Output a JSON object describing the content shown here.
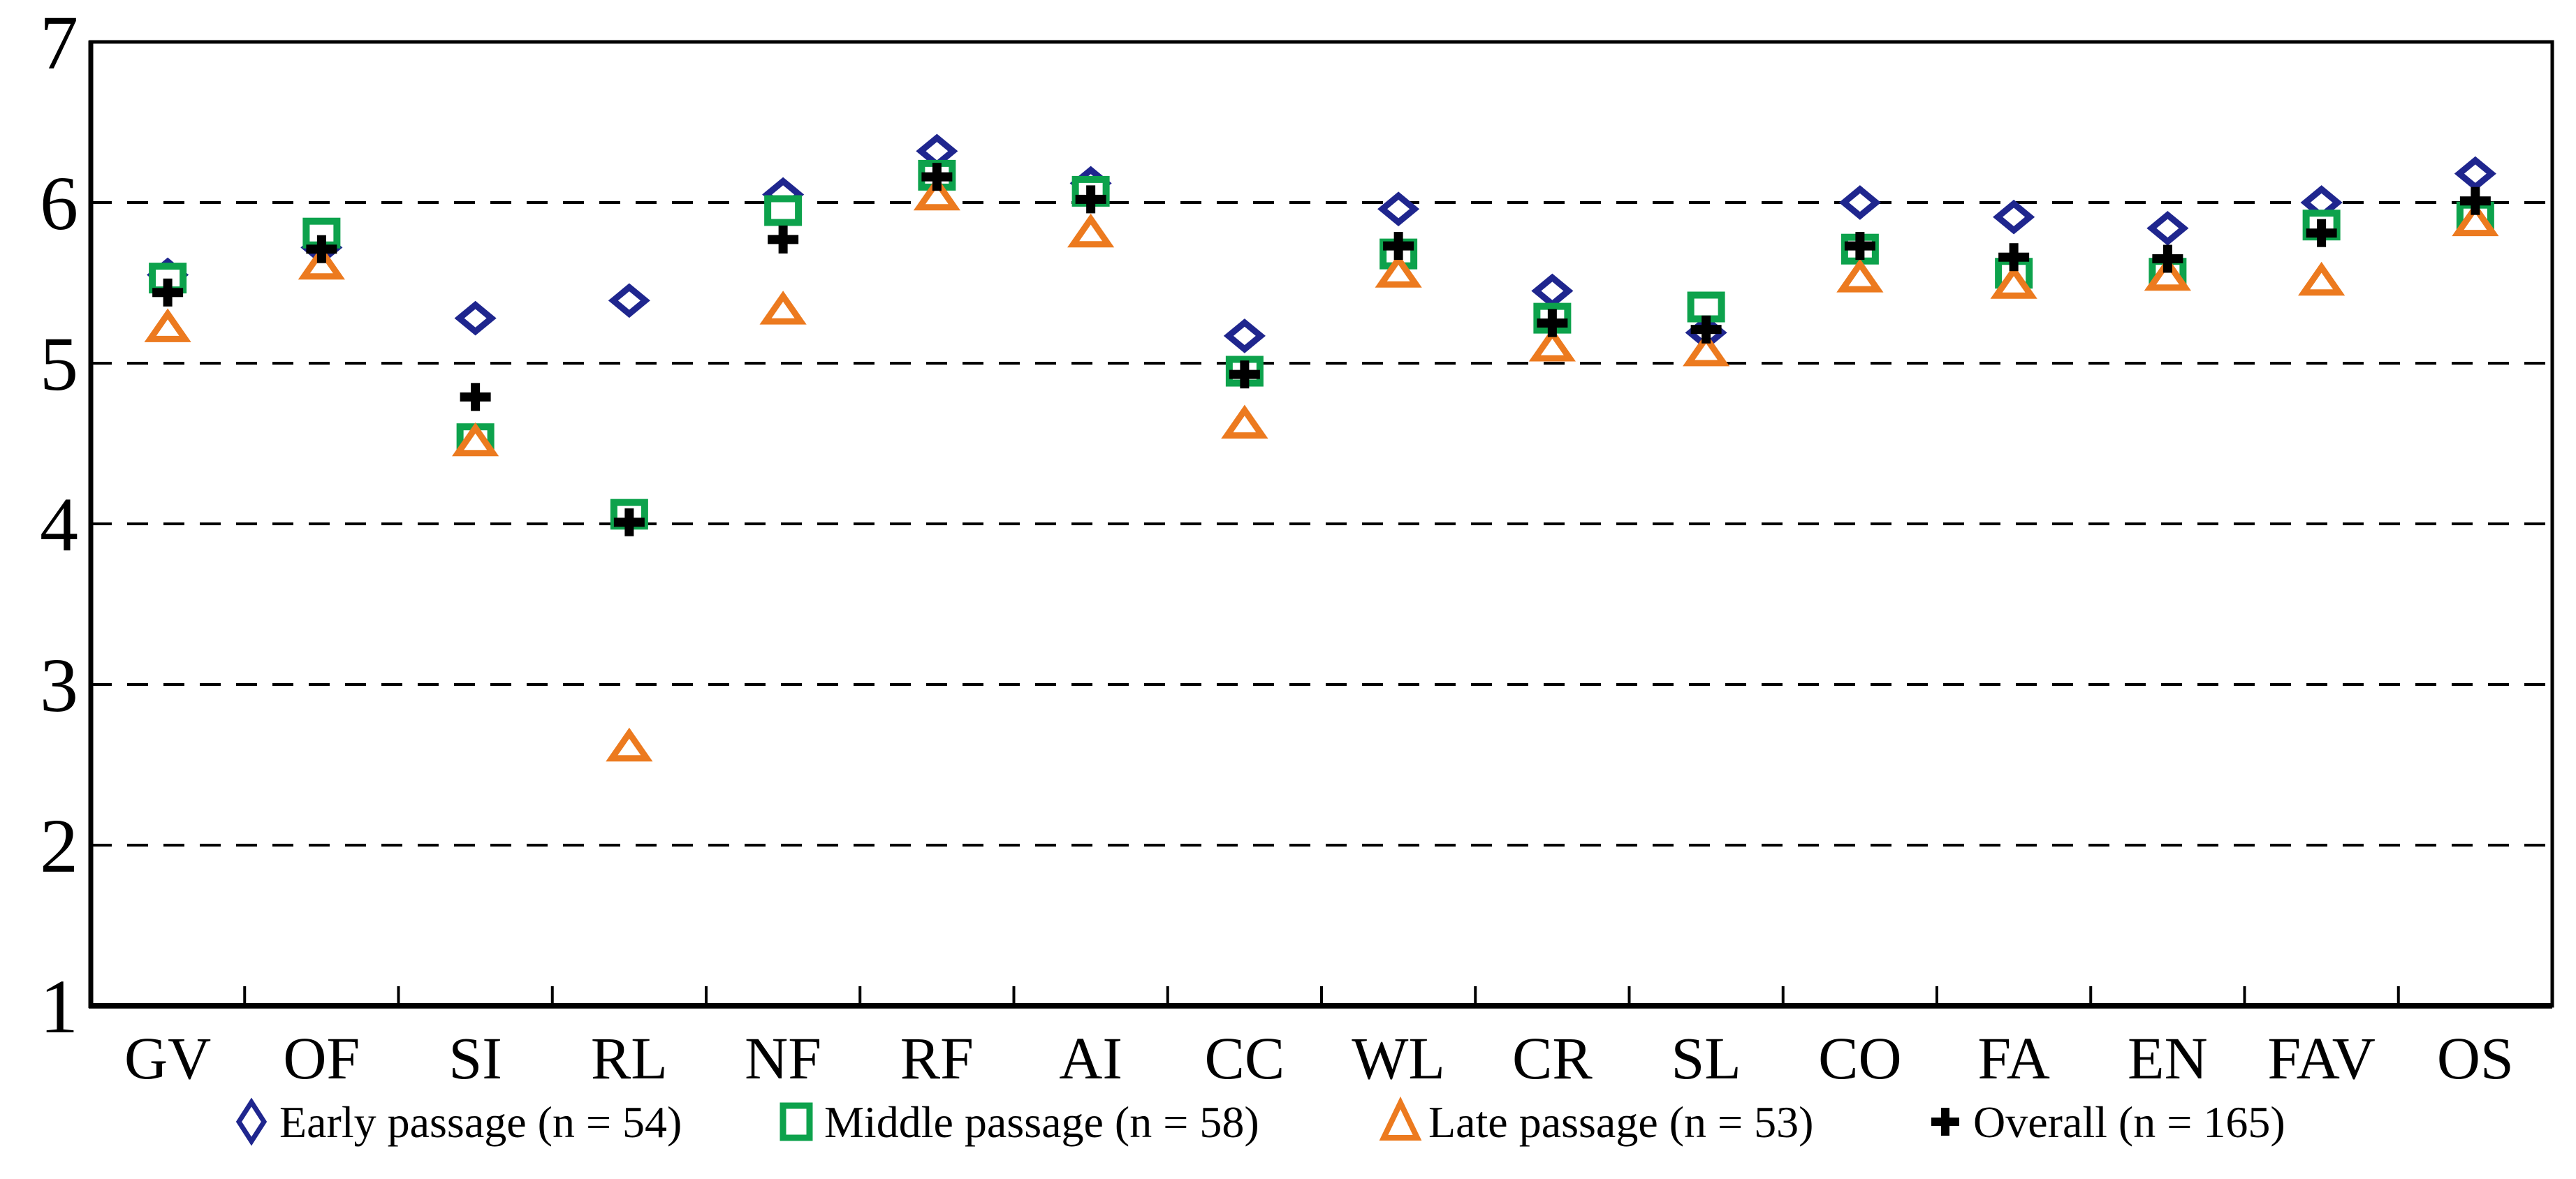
{
  "figure": {
    "background": "#ffffff",
    "plot_border_color": "#000000",
    "gridline_style": "dashed"
  },
  "chart_data": {
    "type": "scatter",
    "title": "",
    "xlabel": "",
    "ylabel": "",
    "categories": [
      "GV",
      "OF",
      "SI",
      "RL",
      "NF",
      "RF",
      "AI",
      "CC",
      "WL",
      "CR",
      "SL",
      "CO",
      "FA",
      "EN",
      "FAV",
      "OS"
    ],
    "series": [
      {
        "name": "Early passage (n = 54)",
        "marker": "diamond",
        "color": "#1f268e",
        "values": [
          5.55,
          5.72,
          5.28,
          5.39,
          6.05,
          6.32,
          6.12,
          5.17,
          5.96,
          5.45,
          5.19,
          6.0,
          5.91,
          5.84,
          6.0,
          6.18
        ]
      },
      {
        "name": "Middle passage (n = 58)",
        "marker": "square",
        "color": "#0da24c",
        "values": [
          5.53,
          5.81,
          4.53,
          4.06,
          5.95,
          6.17,
          6.07,
          4.95,
          5.68,
          5.28,
          5.35,
          5.71,
          5.56,
          5.56,
          5.86,
          5.91
        ]
      },
      {
        "name": "Late passage (n = 53)",
        "marker": "triangle",
        "color": "#ec7a1f",
        "values": [
          5.22,
          5.61,
          4.51,
          2.61,
          5.33,
          6.04,
          5.81,
          4.62,
          5.56,
          5.1,
          5.07,
          5.53,
          5.49,
          5.54,
          5.51,
          5.88
        ]
      },
      {
        "name": "Overall (n = 165)",
        "marker": "plus",
        "color": "#000000",
        "values": [
          5.44,
          5.71,
          4.79,
          4.01,
          5.77,
          6.16,
          6.02,
          4.93,
          5.73,
          5.25,
          5.21,
          5.73,
          5.66,
          5.65,
          5.81,
          6.01
        ]
      }
    ],
    "ylim": [
      1,
      7
    ],
    "yticks": [
      1,
      2,
      3,
      4,
      5,
      6,
      7
    ],
    "gridline_values": [
      2,
      3,
      4,
      5,
      6
    ],
    "grid": "horizontal dashed",
    "legend_position": "bottom",
    "axis_color": "#000000",
    "text_color": "#000000",
    "marker_fill": "#ffffff"
  }
}
